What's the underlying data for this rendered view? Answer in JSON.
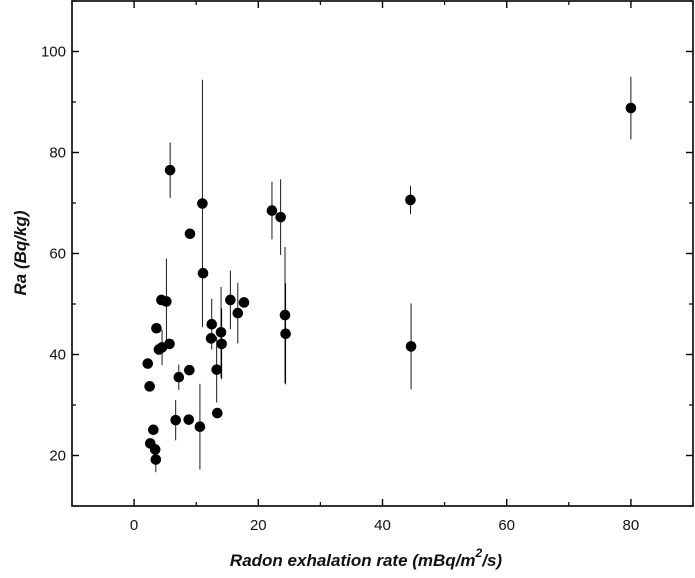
{
  "chart_data": {
    "type": "scatter",
    "xlabel_parts": [
      "Radon exhalation rate (mBq/m",
      "2",
      "/s)"
    ],
    "ylabel": "Ra (Bq/kg)",
    "xlim": [
      -10,
      90
    ],
    "ylim": [
      10,
      110
    ],
    "xticks": [
      0,
      20,
      40,
      60,
      80
    ],
    "yticks": [
      20,
      40,
      60,
      80,
      100
    ],
    "grid": false,
    "marker_color": "#000000",
    "points": [
      {
        "x": 2.2,
        "y": 38.2,
        "err": 0
      },
      {
        "x": 2.5,
        "y": 33.7,
        "err": 0
      },
      {
        "x": 2.6,
        "y": 22.4,
        "err": 0
      },
      {
        "x": 3.1,
        "y": 25.1,
        "err": 0
      },
      {
        "x": 3.4,
        "y": 21.2,
        "err": 0
      },
      {
        "x": 3.5,
        "y": 19.2,
        "err": 2.5
      },
      {
        "x": 3.6,
        "y": 45.2,
        "err": 0
      },
      {
        "x": 4.0,
        "y": 41.0,
        "err": 0
      },
      {
        "x": 4.4,
        "y": 50.8,
        "err": 0
      },
      {
        "x": 4.5,
        "y": 41.4,
        "err": 3.5
      },
      {
        "x": 5.2,
        "y": 50.5,
        "err": 8.5
      },
      {
        "x": 5.7,
        "y": 42.1,
        "err": 0
      },
      {
        "x": 5.8,
        "y": 76.5,
        "err": 5.5
      },
      {
        "x": 6.7,
        "y": 27.0,
        "err": 4.0
      },
      {
        "x": 7.2,
        "y": 35.5,
        "err": 2.5
      },
      {
        "x": 8.8,
        "y": 27.1,
        "err": 1.0
      },
      {
        "x": 8.9,
        "y": 36.9,
        "err": 0
      },
      {
        "x": 9.0,
        "y": 63.9,
        "err": 0
      },
      {
        "x": 10.6,
        "y": 25.7,
        "err": 8.5
      },
      {
        "x": 11.0,
        "y": 69.9,
        "err": 24.5
      },
      {
        "x": 11.1,
        "y": 56.1,
        "err": 0
      },
      {
        "x": 12.4,
        "y": 43.2,
        "err": 0
      },
      {
        "x": 12.5,
        "y": 46.0,
        "err": 5.0
      },
      {
        "x": 13.3,
        "y": 37.0,
        "err": 6.5
      },
      {
        "x": 13.4,
        "y": 28.4,
        "err": 0
      },
      {
        "x": 14.0,
        "y": 44.4,
        "err": 9.0
      },
      {
        "x": 14.1,
        "y": 42.1,
        "err": 7.0
      },
      {
        "x": 15.5,
        "y": 50.8,
        "err": 5.8
      },
      {
        "x": 16.7,
        "y": 48.2,
        "err": 6.0
      },
      {
        "x": 17.7,
        "y": 50.3,
        "err": 0
      },
      {
        "x": 22.2,
        "y": 68.5,
        "err": 5.7
      },
      {
        "x": 23.6,
        "y": 67.2,
        "err": 7.5
      },
      {
        "x": 24.3,
        "y": 47.8,
        "err": 13.5
      },
      {
        "x": 24.4,
        "y": 44.1,
        "err": 10.0
      },
      {
        "x": 44.5,
        "y": 70.6,
        "err": 2.8
      },
      {
        "x": 44.6,
        "y": 41.6,
        "err": 8.5
      },
      {
        "x": 80.0,
        "y": 88.8,
        "err": 6.2
      }
    ]
  }
}
